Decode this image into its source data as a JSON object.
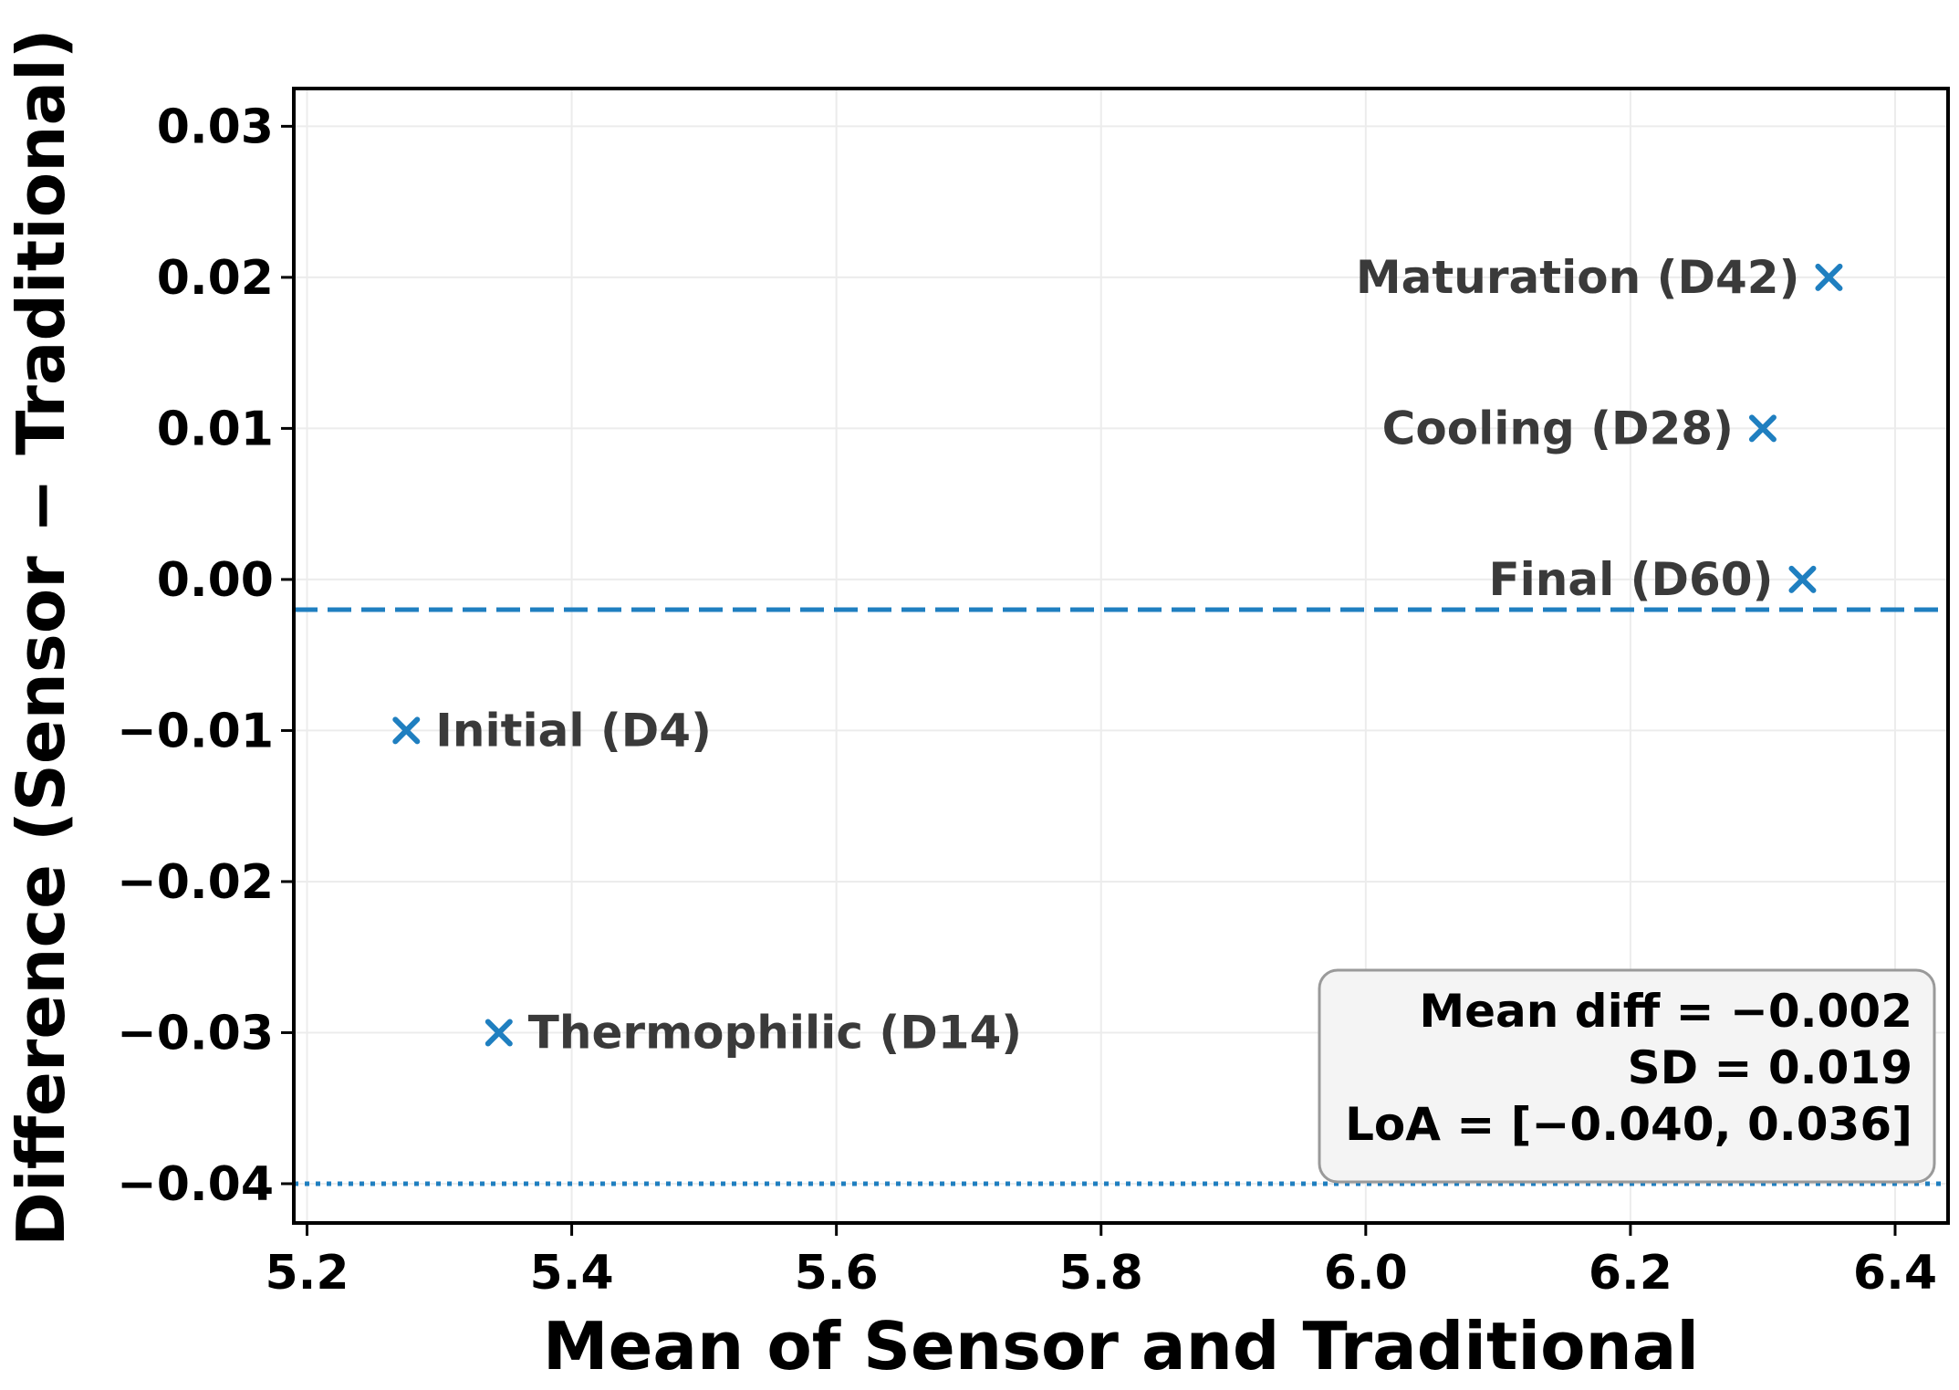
{
  "chart_data": {
    "type": "scatter",
    "xlabel": "Mean of Sensor and Traditional",
    "ylabel": "Difference (Sensor − Traditional)",
    "xlim": [
      5.19,
      6.44
    ],
    "ylim": [
      -0.0426,
      0.0325
    ],
    "x_ticks": [
      5.2,
      5.4,
      5.6,
      5.8,
      6.0,
      6.2,
      6.4
    ],
    "x_tick_labels": [
      "5.2",
      "5.4",
      "5.6",
      "5.8",
      "6.0",
      "6.2",
      "6.4"
    ],
    "y_ticks": [
      0.03,
      0.02,
      0.01,
      0.0,
      -0.01,
      -0.02,
      -0.03,
      -0.04
    ],
    "y_tick_labels": [
      "0.03",
      "0.02",
      "0.01",
      "0.00",
      "−0.01",
      "−0.02",
      "−0.03",
      "−0.04"
    ],
    "grid": true,
    "marker": "x",
    "marker_color": "#1f7fc0",
    "points": [
      {
        "label": "Initial (D4)",
        "x": 5.275,
        "y": -0.01,
        "label_side": "right"
      },
      {
        "label": "Thermophilic (D14)",
        "x": 5.345,
        "y": -0.03,
        "label_side": "right"
      },
      {
        "label": "Cooling (D28)",
        "x": 6.3,
        "y": 0.01,
        "label_side": "left"
      },
      {
        "label": "Maturation (D42)",
        "x": 6.35,
        "y": 0.02,
        "label_side": "left"
      },
      {
        "label": "Final (D60)",
        "x": 6.33,
        "y": 0.0,
        "label_side": "left"
      }
    ],
    "reference_lines": [
      {
        "y": -0.002,
        "style": "dashed",
        "color": "#1f7fc0"
      },
      {
        "y": -0.04,
        "style": "dotted",
        "color": "#1f7fc0"
      }
    ],
    "stats_box": {
      "placement": "bottom-right",
      "lines": [
        "Mean diff = −0.002",
        "SD = 0.019",
        "LoA = [−0.040, 0.036]"
      ]
    }
  }
}
